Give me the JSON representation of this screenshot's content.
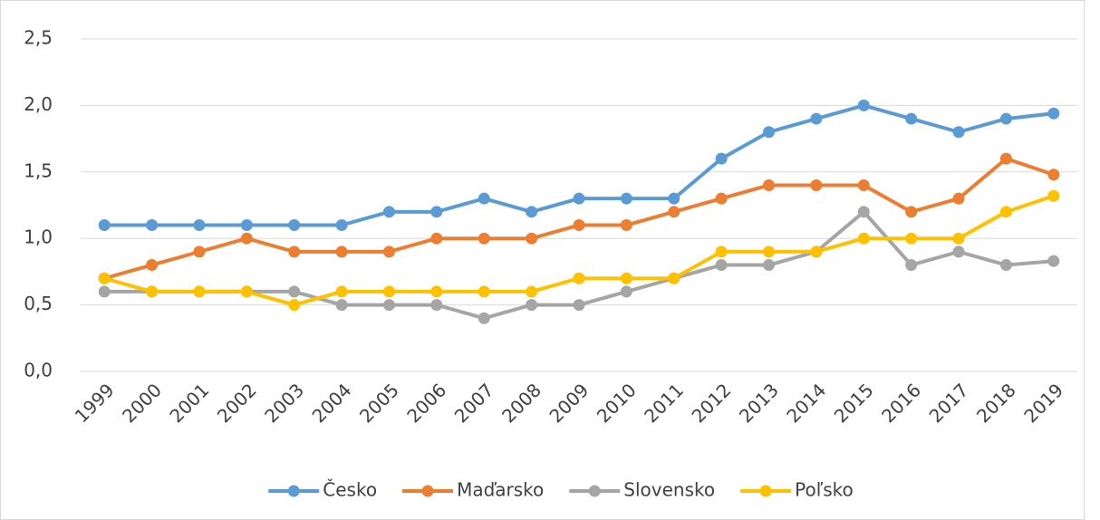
{
  "chart_data": {
    "type": "line",
    "categories": [
      "1999",
      "2000",
      "2001",
      "2002",
      "2003",
      "2004",
      "2005",
      "2006",
      "2007",
      "2008",
      "2009",
      "2010",
      "2011",
      "2012",
      "2013",
      "2014",
      "2015",
      "2016",
      "2017",
      "2018",
      "2019"
    ],
    "series": [
      {
        "name": "Česko",
        "color": "#5b9bd5",
        "values": [
          1.1,
          1.1,
          1.1,
          1.1,
          1.1,
          1.1,
          1.2,
          1.2,
          1.3,
          1.2,
          1.3,
          1.3,
          1.3,
          1.6,
          1.8,
          1.9,
          2.0,
          1.9,
          1.8,
          1.9,
          1.94
        ]
      },
      {
        "name": "Maďarsko",
        "color": "#ed7d31",
        "values": [
          0.7,
          0.8,
          0.9,
          1.0,
          0.9,
          0.9,
          0.9,
          1.0,
          1.0,
          1.0,
          1.1,
          1.1,
          1.2,
          1.3,
          1.4,
          1.4,
          1.4,
          1.2,
          1.3,
          1.6,
          1.48
        ]
      },
      {
        "name": "Slovensko",
        "color": "#a5a5a5",
        "values": [
          0.6,
          0.6,
          0.6,
          0.6,
          0.6,
          0.5,
          0.5,
          0.5,
          0.4,
          0.5,
          0.5,
          0.6,
          0.7,
          0.8,
          0.8,
          0.9,
          1.2,
          0.8,
          0.9,
          0.8,
          0.83
        ]
      },
      {
        "name": "Poľsko",
        "color": "#ffc000",
        "values": [
          0.7,
          0.6,
          0.6,
          0.6,
          0.5,
          0.6,
          0.6,
          0.6,
          0.6,
          0.6,
          0.7,
          0.7,
          0.7,
          0.9,
          0.9,
          0.9,
          1.0,
          1.0,
          1.0,
          1.2,
          1.32
        ]
      }
    ],
    "ylim": [
      0,
      2.5
    ],
    "yticks": [
      {
        "value": 0,
        "label": "0,0"
      },
      {
        "value": 0.5,
        "label": "0,5"
      },
      {
        "value": 1,
        "label": "1,0"
      },
      {
        "value": 1.5,
        "label": "1,5"
      },
      {
        "value": 2,
        "label": "2,0"
      },
      {
        "value": 2.5,
        "label": "2,5"
      }
    ],
    "grid": true,
    "legend": "bottom"
  }
}
